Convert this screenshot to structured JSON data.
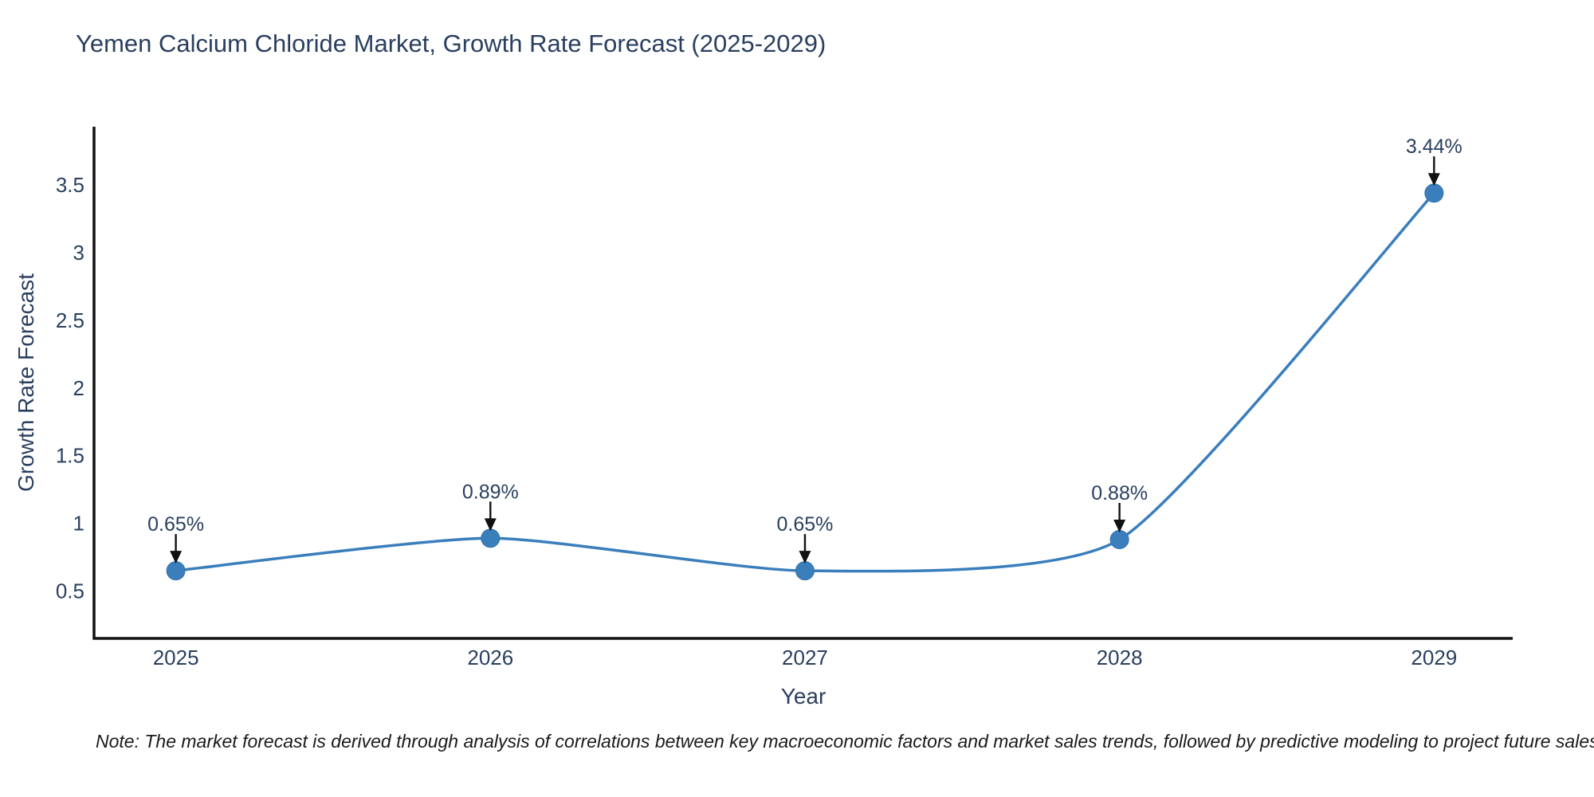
{
  "header": {
    "title": "Yemen Calcium Chloride Market, Growth Rate Forecast (2025-2029)"
  },
  "footer": {
    "note": "Note: The market forecast is derived through analysis of correlations between key macroeconomic factors and market sales trends, followed by predictive modeling to project future sales"
  },
  "chart_data": {
    "type": "line",
    "title": "Yemen Calcium Chloride Market, Growth Rate Forecast (2025-2029)",
    "xlabel": "Year",
    "ylabel": "Growth Rate Forecast",
    "x": [
      2025,
      2026,
      2027,
      2028,
      2029
    ],
    "categories": [
      "2025",
      "2026",
      "2027",
      "2028",
      "2029"
    ],
    "series": [
      {
        "name": "Growth Rate Forecast",
        "values": [
          0.65,
          0.89,
          0.65,
          0.88,
          3.44
        ]
      }
    ],
    "point_labels": [
      "0.65%",
      "0.89%",
      "0.65%",
      "0.88%",
      "3.44%"
    ],
    "yticks": [
      0.5,
      1,
      1.5,
      2,
      2.5,
      3,
      3.5
    ],
    "ylim": [
      0.15,
      3.93
    ],
    "xlim": [
      2024.74,
      2029.25
    ],
    "line_shape": "spline",
    "grid": false,
    "legend": "none",
    "colors": {
      "line": "#3a7ebc",
      "marker": "#3a7ebc",
      "marker_edge": "#3272ae",
      "axis": "#111111",
      "tick_text": "#2a3f5f",
      "annotation_text": "#2a3f5f",
      "arrow": "#111111"
    }
  }
}
